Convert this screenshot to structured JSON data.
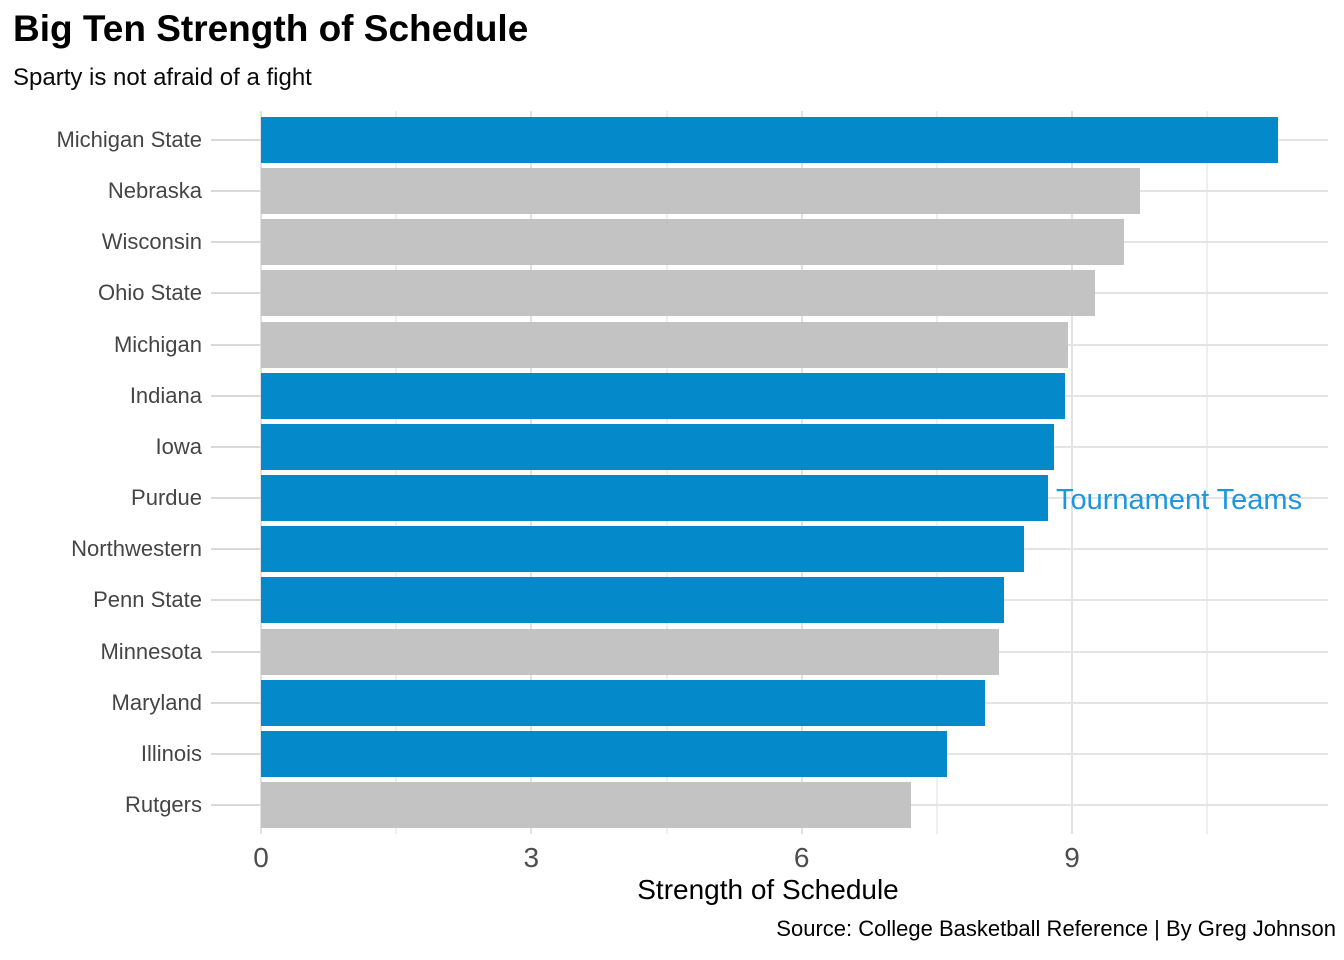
{
  "title": "Big Ten Strength of Schedule",
  "subtitle": "Sparty is not afraid of a fight",
  "annotation": {
    "label": "Tournament Teams"
  },
  "axis": {
    "xlabel": "Strength of Schedule",
    "tick_labels": [
      "0",
      "3",
      "6",
      "9"
    ]
  },
  "source": "Source: College Basketball Reference | By Greg Johnson",
  "colors": {
    "tournament_bar": "#0489CA",
    "regular_bar": "#C3C3C3",
    "annotation_text": "#1C96DF",
    "grid_major": "#e2e2e2",
    "grid_minor": "#efefef",
    "axis_text": "#4d4d4d",
    "label_text": "#454545"
  },
  "chart_data": {
    "type": "bar",
    "orientation": "horizontal",
    "title": "Big Ten Strength of Schedule",
    "subtitle": "Sparty is not afraid of a fight",
    "xlabel": "Strength of Schedule",
    "xlim": [
      0,
      11.84
    ],
    "x_major_ticks": [
      0,
      3,
      6,
      9
    ],
    "x_minor_gridlines": [
      1.5,
      4.5,
      7.5,
      10.5
    ],
    "grid": true,
    "legend_position": "none",
    "annotation": {
      "text": "Tournament Teams",
      "meaning": "blue bars are tournament teams"
    },
    "categories": [
      "Michigan State",
      "Nebraska",
      "Wisconsin",
      "Ohio State",
      "Michigan",
      "Indiana",
      "Iowa",
      "Purdue",
      "Northwestern",
      "Penn State",
      "Minnesota",
      "Maryland",
      "Illinois",
      "Rutgers"
    ],
    "values": [
      11.29,
      9.75,
      9.58,
      9.25,
      8.96,
      8.92,
      8.8,
      8.73,
      8.47,
      8.25,
      8.19,
      8.03,
      7.61,
      7.21
    ],
    "tournament": [
      true,
      false,
      false,
      false,
      false,
      true,
      true,
      true,
      true,
      true,
      false,
      true,
      true,
      false
    ]
  }
}
